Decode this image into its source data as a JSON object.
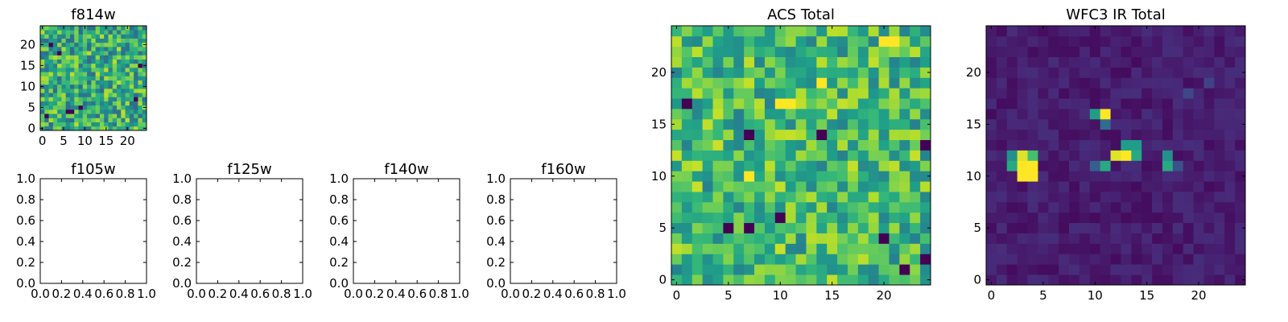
{
  "figure": {
    "background": "#ffffff",
    "colormap": "viridis",
    "colors": {
      "low": "#440154",
      "mid": "#21918c",
      "high": "#fde725"
    }
  },
  "chart_data": [
    {
      "id": "f814w",
      "type": "heatmap",
      "title": "f814w",
      "xlabel": "",
      "ylabel": "",
      "grid": false,
      "xlim": [
        -0.5,
        24.5
      ],
      "ylim": [
        -0.5,
        24.5
      ],
      "xticks": [
        0,
        5,
        10,
        15,
        20
      ],
      "yticks": [
        0,
        5,
        10,
        15,
        20
      ],
      "xtick_labels": [
        "0",
        "5",
        "10",
        "15",
        "20"
      ],
      "ytick_labels": [
        "0",
        "5",
        "10",
        "15",
        "20"
      ],
      "shape": [
        25,
        25
      ],
      "value_range": [
        0,
        1
      ],
      "baseline": 0.62,
      "noise": 0.28,
      "hot_pixels": [],
      "cold_pixels": [
        [
          1,
          3
        ],
        [
          6,
          4
        ],
        [
          7,
          4
        ],
        [
          9,
          5
        ],
        [
          22,
          7
        ],
        [
          4,
          18
        ],
        [
          2,
          20
        ],
        [
          23,
          15
        ]
      ],
      "seed": 814
    },
    {
      "id": "f105w",
      "type": "heatmap",
      "title": "f105w",
      "xlabel": "",
      "ylabel": "",
      "grid": false,
      "empty": true,
      "xlim": [
        0,
        1
      ],
      "ylim": [
        0,
        1
      ],
      "xticks": [
        0,
        0.2,
        0.4,
        0.6,
        0.8,
        1.0
      ],
      "yticks": [
        0,
        0.2,
        0.4,
        0.6,
        0.8,
        1.0
      ],
      "xtick_labels": [
        "0.0",
        "0.2",
        "0.4",
        "0.6",
        "0.8",
        "1.0"
      ],
      "ytick_labels": [
        "0.0",
        "0.2",
        "0.4",
        "0.6",
        "0.8",
        "1.0"
      ]
    },
    {
      "id": "f125w",
      "type": "heatmap",
      "title": "f125w",
      "xlabel": "",
      "ylabel": "",
      "grid": false,
      "empty": true,
      "xlim": [
        0,
        1
      ],
      "ylim": [
        0,
        1
      ],
      "xticks": [
        0,
        0.2,
        0.4,
        0.6,
        0.8,
        1.0
      ],
      "yticks": [
        0,
        0.2,
        0.4,
        0.6,
        0.8,
        1.0
      ],
      "xtick_labels": [
        "0.0",
        "0.2",
        "0.4",
        "0.6",
        "0.8",
        "1.0"
      ],
      "ytick_labels": [
        "0.0",
        "0.2",
        "0.4",
        "0.6",
        "0.8",
        "1.0"
      ]
    },
    {
      "id": "f140w",
      "type": "heatmap",
      "title": "f140w",
      "xlabel": "",
      "ylabel": "",
      "grid": false,
      "empty": true,
      "xlim": [
        0,
        1
      ],
      "ylim": [
        0,
        1
      ],
      "xticks": [
        0,
        0.2,
        0.4,
        0.6,
        0.8,
        1.0
      ],
      "yticks": [
        0,
        0.2,
        0.4,
        0.6,
        0.8,
        1.0
      ],
      "xtick_labels": [
        "0.0",
        "0.2",
        "0.4",
        "0.6",
        "0.8",
        "1.0"
      ],
      "ytick_labels": [
        "0.0",
        "0.2",
        "0.4",
        "0.6",
        "0.8",
        "1.0"
      ]
    },
    {
      "id": "f160w",
      "type": "heatmap",
      "title": "f160w",
      "xlabel": "",
      "ylabel": "",
      "grid": false,
      "empty": true,
      "xlim": [
        0,
        1
      ],
      "ylim": [
        0,
        1
      ],
      "xticks": [
        0,
        0.2,
        0.4,
        0.6,
        0.8,
        1.0
      ],
      "yticks": [
        0,
        0.2,
        0.4,
        0.6,
        0.8,
        1.0
      ],
      "xtick_labels": [
        "0.0",
        "0.2",
        "0.4",
        "0.6",
        "0.8",
        "1.0"
      ],
      "ytick_labels": [
        "0.0",
        "0.2",
        "0.4",
        "0.6",
        "0.8",
        "1.0"
      ]
    },
    {
      "id": "acs_total",
      "type": "heatmap",
      "title": "ACS Total",
      "xlabel": "",
      "ylabel": "",
      "grid": false,
      "xlim": [
        -0.5,
        24.5
      ],
      "ylim": [
        -0.5,
        24.5
      ],
      "xticks": [
        0,
        5,
        10,
        15,
        20
      ],
      "yticks": [
        0,
        5,
        10,
        15,
        20
      ],
      "xtick_labels": [
        "0",
        "5",
        "10",
        "15",
        "20"
      ],
      "ytick_labels": [
        "0",
        "5",
        "10",
        "15",
        "20"
      ],
      "shape": [
        25,
        25
      ],
      "value_range": [
        0,
        1
      ],
      "baseline": 0.68,
      "noise": 0.24,
      "hot_pixels": [
        [
          10,
          17
        ],
        [
          11,
          17
        ],
        [
          20,
          23
        ],
        [
          21,
          23
        ],
        [
          14,
          19
        ],
        [
          7,
          10
        ]
      ],
      "cold_pixels": [
        [
          1,
          17
        ],
        [
          14,
          14
        ],
        [
          10,
          6
        ],
        [
          5,
          5
        ],
        [
          7,
          5
        ],
        [
          20,
          4
        ],
        [
          22,
          1
        ],
        [
          24,
          13
        ],
        [
          7,
          14
        ],
        [
          24,
          2
        ]
      ],
      "seed": 606
    },
    {
      "id": "wfc3_ir_total",
      "type": "heatmap",
      "title": "WFC3 IR Total",
      "xlabel": "",
      "ylabel": "",
      "grid": false,
      "xlim": [
        -0.5,
        24.5
      ],
      "ylim": [
        -0.5,
        24.5
      ],
      "xticks": [
        0,
        5,
        10,
        15,
        20
      ],
      "yticks": [
        0,
        5,
        10,
        15,
        20
      ],
      "xtick_labels": [
        "0",
        "5",
        "10",
        "15",
        "20"
      ],
      "ytick_labels": [
        "0",
        "5",
        "10",
        "15",
        "20"
      ],
      "shape": [
        25,
        25
      ],
      "value_range": [
        0,
        1
      ],
      "baseline": 0.08,
      "noise": 0.05,
      "hot_pixels": [
        [
          3,
          12,
          0.95
        ],
        [
          4,
          12,
          0.7
        ],
        [
          3,
          11,
          1.0
        ],
        [
          4,
          11,
          1.0
        ],
        [
          3,
          10,
          1.0
        ],
        [
          4,
          10,
          1.0
        ],
        [
          2,
          11,
          0.6
        ],
        [
          2,
          12,
          0.5
        ],
        [
          11,
          16,
          1.0
        ],
        [
          10,
          16,
          0.55
        ],
        [
          11,
          15,
          0.35
        ],
        [
          12,
          12,
          0.95
        ],
        [
          13,
          12,
          1.0
        ],
        [
          13,
          13,
          0.55
        ],
        [
          14,
          13,
          0.55
        ],
        [
          14,
          12,
          0.6
        ],
        [
          11,
          11,
          0.6
        ],
        [
          17,
          12,
          0.5
        ],
        [
          17,
          11,
          0.6
        ],
        [
          18,
          11,
          0.25
        ],
        [
          10,
          11,
          0.3
        ],
        [
          19,
          18,
          0.22
        ],
        [
          21,
          19,
          0.2
        ]
      ],
      "cold_pixels": [],
      "seed": 316
    }
  ]
}
